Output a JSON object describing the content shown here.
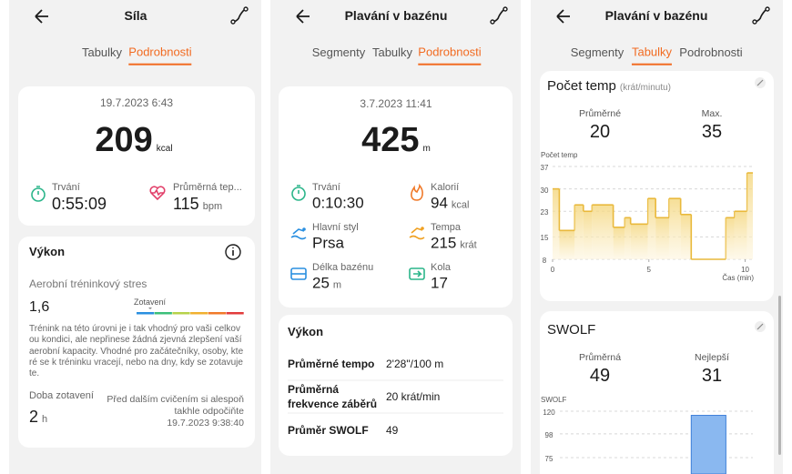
{
  "screens": [
    {
      "title": "Síla",
      "tabs": [
        "Tabulky",
        "Podrobnosti"
      ],
      "active_tab": 1,
      "summary": {
        "date": "19.7.2023 6:43",
        "value": 209,
        "unit": "kcal"
      },
      "stats": [
        {
          "label": "Trvání",
          "value": "0:55:09"
        },
        {
          "label": "Průměrná tep...",
          "value": 115,
          "unit": "bpm"
        }
      ],
      "performance": {
        "title": "Výkon",
        "metric_label": "Aerobní tréninkový stres",
        "metric_value": "1,6",
        "scale_label": "Zotavení",
        "description": [
          "Trénink na této úrovni je i tak vhodný pro vaši celkov",
          "ou kondici, ale nepřinese žádná zjevná zlepšení vaší",
          "aerobní kapacity. Vhodné pro začátečníky, osoby, kte",
          "ré se k tréninku vracejí, nebo na dny, kdy se zotavuje",
          "te."
        ],
        "recovery_label": "Doba zotavení",
        "recovery_value": 2,
        "recovery_unit": "h",
        "recovery_note": [
          "Před dalším cvičením si alespoň",
          "takhle odpočiňte",
          "19.7.2023 9:38:40"
        ]
      }
    },
    {
      "title": "Plavání v bazénu",
      "tabs": [
        "Segmenty",
        "Tabulky",
        "Podrobnosti"
      ],
      "active_tab": 2,
      "summary": {
        "date": "3.7.2023 11:41",
        "value": 425,
        "unit": "m"
      },
      "stats": [
        {
          "label": "Trvání",
          "value": "0:10:30"
        },
        {
          "label": "Kalorií",
          "value": 94,
          "unit": "kcal"
        },
        {
          "label": "Hlavní styl",
          "value": "Prsa"
        },
        {
          "label": "Tempa",
          "value": 215,
          "unit": "krát"
        },
        {
          "label": "Délka bazénu",
          "value": 25,
          "unit": "m"
        },
        {
          "label": "Kola",
          "value": 17
        }
      ],
      "performance": {
        "title": "Výkon",
        "rows": [
          {
            "label": [
              "Průměrné tempo"
            ],
            "value": "2'28\"/100 m"
          },
          {
            "label": [
              "Průměrná",
              "frekvence záběrů"
            ],
            "value": "20 krát/min"
          },
          {
            "label": [
              "Průměr SWOLF"
            ],
            "value": 49
          }
        ]
      }
    },
    {
      "title": "Plavání v bazénu",
      "tabs": [
        "Segmenty",
        "Tabulky",
        "Podrobnosti"
      ],
      "active_tab": 1,
      "cards": [
        {
          "title": "Počet temp",
          "subtitle": "(krát/minutu)",
          "stats": [
            {
              "label": "Průměrné",
              "value": 20
            },
            {
              "label": "Max.",
              "value": 35
            }
          ]
        },
        {
          "title": "SWOLF",
          "stats": [
            {
              "label": "Průměrná",
              "value": 49
            },
            {
              "label": "Nejlepší",
              "value": 31
            }
          ]
        }
      ]
    }
  ],
  "chart_data": [
    {
      "type": "step",
      "y_label": "Počet temp",
      "x_label": "Čas (min)",
      "x": [
        0,
        0.35,
        1.15,
        1.6,
        2.05,
        3.15,
        3.75,
        4.05,
        4.95,
        5.35,
        6.05,
        6.65,
        7.2,
        9.0,
        9.45,
        10.1
      ],
      "series": [
        {
          "color": "#e9b93c",
          "values": [
            30,
            17,
            25,
            23,
            25,
            18,
            21,
            19,
            27,
            21,
            27,
            22,
            8,
            21,
            23,
            35
          ]
        }
      ],
      "xlim": [
        0,
        10.4
      ],
      "ylim": [
        8,
        37
      ],
      "xticks": [
        0,
        5,
        10
      ],
      "yticks": [
        8,
        15,
        23,
        30,
        37
      ],
      "grid": true
    },
    {
      "type": "histogram",
      "y_label": "SWOLF",
      "bins": [
        7.2,
        9.0
      ],
      "values": [
        116
      ],
      "color": "#8ab8f0",
      "xlim": [
        0,
        10.4
      ],
      "ylim": [
        60,
        120
      ],
      "yticks": [
        75,
        98,
        120
      ],
      "grid": true
    }
  ]
}
